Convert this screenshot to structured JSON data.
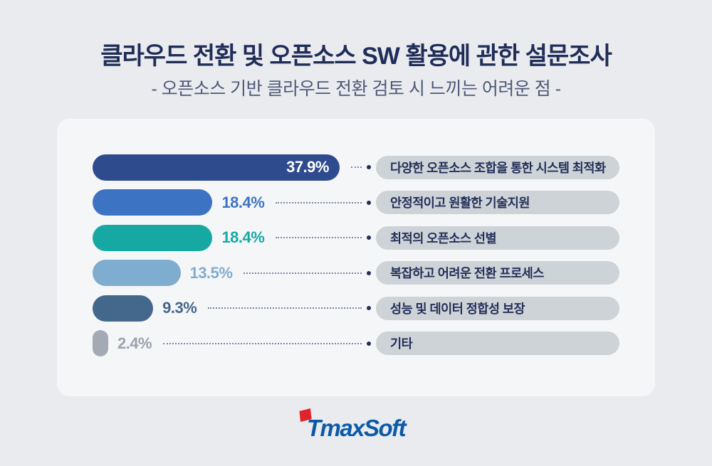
{
  "header": {
    "title": "클라우드 전환 및 오픈소스 SW 활용에 관한 설문조사",
    "subtitle": "- 오픈소스 기반 클라우드 전환 검토 시 느끼는 어려운 점 -"
  },
  "chart_data": {
    "type": "bar",
    "orientation": "horizontal",
    "unit": "%",
    "title": "오픈소스 기반 클라우드 전환 검토 시 느끼는 어려운 점",
    "categories": [
      "다양한 오픈소스 조합을 통한 시스템 최적화",
      "안정적이고 원활한 기술지원",
      "최적의 오픈소스 선별",
      "복잡하고 어려운 전환 프로세스",
      "성능 및 데이터 정합성 보장",
      "기타"
    ],
    "values": [
      37.9,
      18.4,
      18.4,
      13.5,
      9.3,
      2.4
    ],
    "value_labels": [
      "37.9%",
      "18.4%",
      "18.4%",
      "13.5%",
      "9.3%",
      "2.4%"
    ],
    "bar_colors": [
      "#2e4b8e",
      "#3d73c3",
      "#16a9a3",
      "#7fadd0",
      "#44678c",
      "#a3aab4"
    ],
    "value_label_colors": [
      "#ffffff",
      "#3d73c3",
      "#16a9a3",
      "#7fadd0",
      "#44678c",
      "#9aa2ac"
    ],
    "label_inside_bar": [
      true,
      false,
      false,
      false,
      false,
      false
    ],
    "xlim": [
      0,
      40
    ],
    "grid": false,
    "legend": false
  },
  "colors": {
    "page_background": "#e9ebee",
    "card_background": "#f5f6f8",
    "title_text": "#202d58",
    "subtitle_text": "#4d5978",
    "pill_background": "#ced3d8",
    "pill_text": "#232f58",
    "leader_dot": "#232f58",
    "logo_blue": "#0b5aa9",
    "logo_red": "#df252b"
  },
  "footer": {
    "logo_text": "TmaxSoft"
  }
}
